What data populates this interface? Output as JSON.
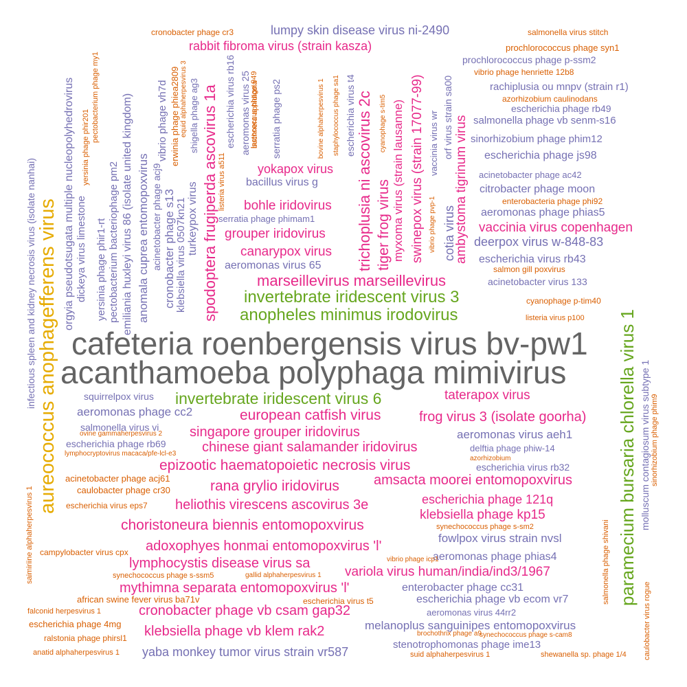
{
  "colors": {
    "gray": "#646464",
    "green": "#66a61e",
    "gold": "#e6ab02",
    "magenta": "#e7298a",
    "purple": "#7570b3",
    "orange": "#d95f02"
  },
  "words": [
    {
      "text": "cafeteria roenbergensis virus bv-pw1",
      "color": "gray"
    },
    {
      "text": "acanthamoeba polyphaga mimivirus",
      "color": "gray"
    },
    {
      "text": "aureococcus anophagefferens virus",
      "color": "gold"
    },
    {
      "text": "paramecium bursaria chlorella virus 1",
      "color": "green"
    },
    {
      "text": "invertebrate iridescent virus 3",
      "color": "green"
    },
    {
      "text": "anopheles minimus irodovirus",
      "color": "green"
    },
    {
      "text": "invertebrate iridescent virus 6",
      "color": "green"
    },
    {
      "text": "marseillevirus marseillevirus",
      "color": "magenta"
    },
    {
      "text": "european catfish virus",
      "color": "magenta"
    },
    {
      "text": "frog virus 3 (isolate goorha)",
      "color": "magenta"
    },
    {
      "text": "singapore grouper iridovirus",
      "color": "magenta"
    },
    {
      "text": "chinese giant salamander iridovirus",
      "color": "magenta"
    },
    {
      "text": "epizootic haematopoietic necrosis virus",
      "color": "magenta"
    },
    {
      "text": "rana grylio iridovirus",
      "color": "magenta"
    },
    {
      "text": "amsacta moorei entomopoxvirus",
      "color": "magenta"
    },
    {
      "text": "heliothis virescens ascovirus 3e",
      "color": "magenta"
    },
    {
      "text": "escherichia phage 121q",
      "color": "magenta"
    },
    {
      "text": "klebsiella phage kp15",
      "color": "magenta"
    },
    {
      "text": "choristoneura biennis entomopoxvirus",
      "color": "magenta"
    },
    {
      "text": "adoxophyes honmai entomopoxvirus 'l'",
      "color": "magenta"
    },
    {
      "text": "lymphocystis disease virus sa",
      "color": "magenta"
    },
    {
      "text": "variola virus human/india/ind3/1967",
      "color": "magenta"
    },
    {
      "text": "mythimna separata entomopoxvirus 'l'",
      "color": "magenta"
    },
    {
      "text": "cronobacter phage vb csam gap32",
      "color": "magenta"
    },
    {
      "text": "klebsiella phage vb klem rak2",
      "color": "magenta"
    },
    {
      "text": "taterapox virus",
      "color": "magenta"
    },
    {
      "text": "spodoptera frugiperda ascovirus 1a",
      "color": "magenta"
    },
    {
      "text": "trichoplusia ni ascovirus 2c",
      "color": "magenta"
    },
    {
      "text": "tiger frog virus",
      "color": "magenta"
    },
    {
      "text": "myxoma virus (strain lausanne)",
      "color": "magenta"
    },
    {
      "text": "swinepox virus (strain 17077-99)",
      "color": "magenta"
    },
    {
      "text": "ambystoma tigrinum virus",
      "color": "magenta"
    },
    {
      "text": "bohle iridovirus",
      "color": "magenta"
    },
    {
      "text": "grouper iridovirus",
      "color": "magenta"
    },
    {
      "text": "canarypox virus",
      "color": "magenta"
    },
    {
      "text": "yokapox virus",
      "color": "magenta"
    },
    {
      "text": "rabbit fibroma virus (strain kasza)",
      "color": "magenta"
    },
    {
      "text": "vaccinia virus copenhagen",
      "color": "magenta"
    },
    {
      "text": "cotia virus",
      "color": "purple"
    },
    {
      "text": "lumpy skin disease virus ni-2490",
      "color": "purple"
    },
    {
      "text": "deerpox virus w-848-83",
      "color": "purple"
    },
    {
      "text": "escherichia virus rb43",
      "color": "purple"
    },
    {
      "text": "aeromonas phage phias5",
      "color": "purple"
    },
    {
      "text": "citrobacter phage moon",
      "color": "purple"
    },
    {
      "text": "escherichia phage js98",
      "color": "purple"
    },
    {
      "text": "sinorhizobium phage phim12",
      "color": "purple"
    },
    {
      "text": "salmonella phage vb senm-s16",
      "color": "purple"
    },
    {
      "text": "escherichia phage rb49",
      "color": "purple"
    },
    {
      "text": "rachiplusia ou mnpv (strain r1)",
      "color": "purple"
    },
    {
      "text": "prochlorococcus phage p-ssm2",
      "color": "purple"
    },
    {
      "text": "acinetobacter phage ac42",
      "color": "purple"
    },
    {
      "text": "acinetobacter virus 133",
      "color": "purple"
    },
    {
      "text": "aeromonas virus 65",
      "color": "purple"
    },
    {
      "text": "serratia phage phimam1",
      "color": "purple"
    },
    {
      "text": "bacillus virus g",
      "color": "purple"
    },
    {
      "text": "squirrelpox virus",
      "color": "purple"
    },
    {
      "text": "aeromonas phage cc2",
      "color": "purple"
    },
    {
      "text": "salmonella virus vi",
      "color": "purple"
    },
    {
      "text": "escherichia phage rb69",
      "color": "purple"
    },
    {
      "text": "aeromonas virus aeh1",
      "color": "purple"
    },
    {
      "text": "delftia phage phiw-14",
      "color": "purple"
    },
    {
      "text": "escherichia virus rb32",
      "color": "purple"
    },
    {
      "text": "molluscum contagiosum virus subtype 1",
      "color": "purple"
    },
    {
      "text": "fowlpox virus strain nvsl",
      "color": "purple"
    },
    {
      "text": "aeromonas phage phias4",
      "color": "purple"
    },
    {
      "text": "enterobacter phage cc31",
      "color": "purple"
    },
    {
      "text": "escherichia phage vb ecom vr7",
      "color": "purple"
    },
    {
      "text": "aeromonas virus 44rr2",
      "color": "purple"
    },
    {
      "text": "melanoplus sanguinipes entomopoxvirus",
      "color": "purple"
    },
    {
      "text": "stenotrophomonas phage ime13",
      "color": "purple"
    },
    {
      "text": "yaba monkey tumor virus strain vr587",
      "color": "purple"
    },
    {
      "text": "infectious spleen and kidney necrosis virus (isolate nanhai)",
      "color": "purple"
    },
    {
      "text": "orgyia pseudotsugata multiple nucleopolyhedrovirus",
      "color": "purple"
    },
    {
      "text": "dickeya virus limestone",
      "color": "purple"
    },
    {
      "text": "yersinia phage phir1-rt",
      "color": "purple"
    },
    {
      "text": "pectobacterium bacteriophage pm2",
      "color": "purple"
    },
    {
      "text": "emiliania huxleyi virus 86 (isolate united kingdom)",
      "color": "purple"
    },
    {
      "text": "anomala cuprea entomopoxvirus",
      "color": "purple"
    },
    {
      "text": "acinetobacter phage acj9",
      "color": "purple"
    },
    {
      "text": "cronobacter phage s13",
      "color": "purple"
    },
    {
      "text": "vibrio phage vh7d",
      "color": "purple"
    },
    {
      "text": "klebsiella virus 0507kn21",
      "color": "purple"
    },
    {
      "text": "turkeypox virus",
      "color": "purple"
    },
    {
      "text": "shigella phage ag3",
      "color": "purple"
    },
    {
      "text": "escherichia virus rb16",
      "color": "purple"
    },
    {
      "text": "aeromonas virus 25",
      "color": "purple"
    },
    {
      "text": "serratia phage ps2",
      "color": "purple"
    },
    {
      "text": "escherichia virus t4",
      "color": "purple"
    },
    {
      "text": "vaccinia virus wr",
      "color": "purple"
    },
    {
      "text": "orf virus strain sa00",
      "color": "purple"
    },
    {
      "text": "cronobacter phage cr3",
      "color": "orange"
    },
    {
      "text": "salmonella virus stitch",
      "color": "orange"
    },
    {
      "text": "prochlorococcus phage syn1",
      "color": "orange"
    },
    {
      "text": "vibrio phage henriette 12b8",
      "color": "orange"
    },
    {
      "text": "azorhizobium caulinodans",
      "color": "orange"
    },
    {
      "text": "enterobacteria phage phi92",
      "color": "orange"
    },
    {
      "text": "salmon gill poxvirus",
      "color": "orange"
    },
    {
      "text": "cyanophage p-tim40",
      "color": "orange"
    },
    {
      "text": "listeria virus p100",
      "color": "orange"
    },
    {
      "text": "ovine gammaherpesvirus 2",
      "color": "orange"
    },
    {
      "text": "lymphocryptovirus macaca/pfe-lcl-e3",
      "color": "orange"
    },
    {
      "text": "azorhizobium",
      "color": "orange"
    },
    {
      "text": "acinetobacter phage acj61",
      "color": "orange"
    },
    {
      "text": "caulobacter phage cr30",
      "color": "orange"
    },
    {
      "text": "escherichia virus eps7",
      "color": "orange"
    },
    {
      "text": "synechococcus phage s-sm2",
      "color": "orange"
    },
    {
      "text": "campylobacter virus cpx",
      "color": "orange"
    },
    {
      "text": "vibrio phage icp1",
      "color": "orange"
    },
    {
      "text": "synechococcus phage s-ssm5",
      "color": "orange"
    },
    {
      "text": "gallid alphaherpesvirus 1",
      "color": "orange"
    },
    {
      "text": "african swine fever virus ba71v",
      "color": "orange"
    },
    {
      "text": "escherichia virus t5",
      "color": "orange"
    },
    {
      "text": "falconid herpesvirus 1",
      "color": "orange"
    },
    {
      "text": "escherichia phage 4mg",
      "color": "orange"
    },
    {
      "text": "ralstonia phage phirsl1",
      "color": "orange"
    },
    {
      "text": "anatid alphaherpesvirus 1",
      "color": "orange"
    },
    {
      "text": "brochothrix phage a9",
      "color": "orange"
    },
    {
      "text": "synechococcus phage s-cam8",
      "color": "orange"
    },
    {
      "text": "suid alphaherpesvirus 1",
      "color": "orange"
    },
    {
      "text": "shewanella sp. phage 1/4",
      "color": "orange"
    },
    {
      "text": "caulobacter virus rogue",
      "color": "orange"
    },
    {
      "text": "salmonella phage shivani",
      "color": "orange"
    },
    {
      "text": "sinorhizobium phage phim9",
      "color": "orange"
    },
    {
      "text": "saimiriine alphaherpesvirus 1",
      "color": "orange"
    },
    {
      "text": "yersinia phage phir201",
      "color": "orange"
    },
    {
      "text": "pectobacterium phage my1",
      "color": "orange"
    },
    {
      "text": "erwinia phage phiea2809",
      "color": "orange"
    },
    {
      "text": "equid alphaherpesvirus 3",
      "color": "orange"
    },
    {
      "text": "listeria virus a511",
      "color": "orange"
    },
    {
      "text": "lactococcus phage 949",
      "color": "orange"
    },
    {
      "text": "buchnera aphidicola",
      "color": "orange"
    },
    {
      "text": "bovine alphaherpesvirus 1",
      "color": "orange"
    },
    {
      "text": "staphylococcus phage sa1",
      "color": "orange"
    },
    {
      "text": "cyanophage s-tim5",
      "color": "orange"
    },
    {
      "text": "vibrio phage pvp-1",
      "color": "orange"
    }
  ]
}
